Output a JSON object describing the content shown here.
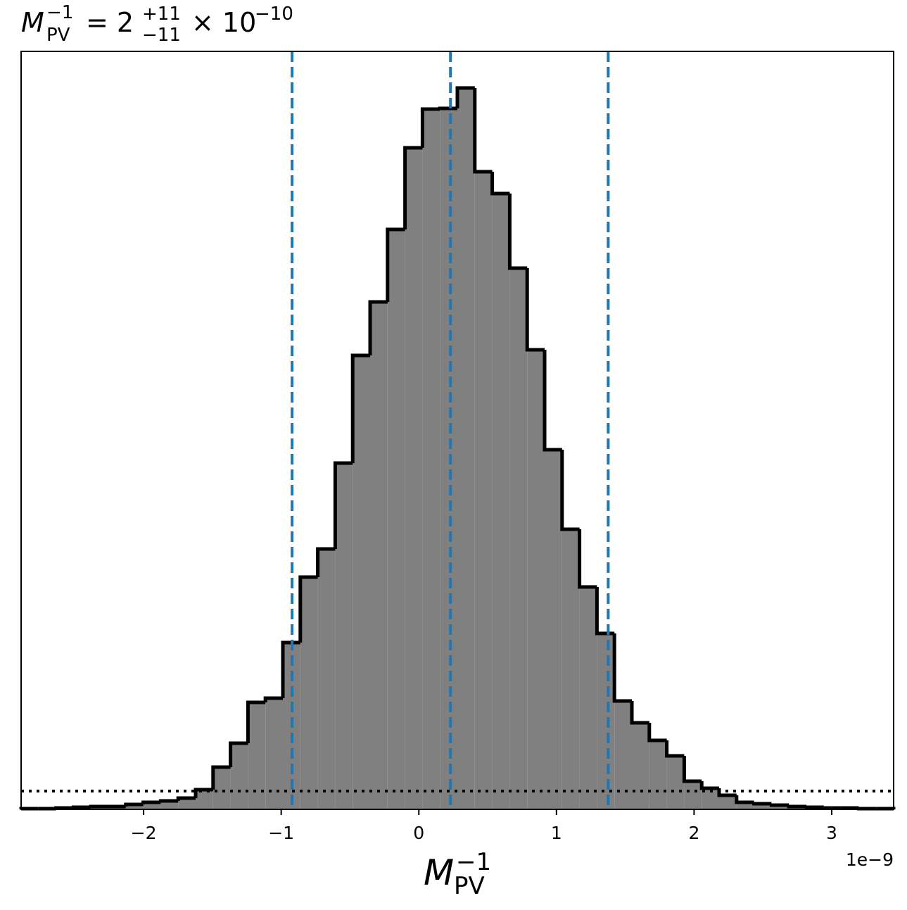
{
  "chart_data": {
    "type": "histogram",
    "title": {
      "symbol": "M",
      "symbol_sup": "−1",
      "symbol_sub": "PV",
      "equals": "= 2",
      "upper": "+11",
      "lower": "−11",
      "times": "× 10",
      "exponent": "−10"
    },
    "x_label": {
      "symbol": "M",
      "symbol_sup": "−1",
      "symbol_sub": "PV"
    },
    "x_offset_label": "1e−9",
    "bins": [
      -2.89,
      -2.7632,
      -2.6364,
      -2.5096,
      -2.3828,
      -2.256,
      -2.1292,
      -2.0024,
      -1.8756,
      -1.7488,
      -1.622,
      -1.4952,
      -1.3684,
      -1.2416,
      -1.1148,
      -0.988,
      -0.8612,
      -0.7344,
      -0.6076,
      -0.4808,
      -0.354,
      -0.2272,
      -0.1004,
      0.0264,
      0.1532,
      0.28,
      0.4068,
      0.5336,
      0.6604,
      0.7872,
      0.914,
      1.0408,
      1.1676,
      1.2944,
      1.4212,
      1.548,
      1.6748,
      1.8016,
      1.9284,
      2.0552,
      2.182,
      2.3088,
      2.4356,
      2.5624,
      2.6892,
      2.816,
      2.9428,
      3.0696,
      3.1964,
      3.3232,
      3.45
    ],
    "values": [
      1,
      1,
      2,
      3,
      4,
      4,
      7,
      10,
      12,
      16,
      28,
      60,
      94,
      152,
      158,
      237,
      330,
      370,
      492,
      645,
      721,
      824,
      940,
      995,
      996,
      1025,
      906,
      875,
      769,
      653,
      511,
      398,
      316,
      250,
      154,
      123,
      98,
      76,
      40,
      30,
      20,
      10,
      8,
      6,
      4,
      3,
      2,
      2,
      1,
      1
    ],
    "color": "#808080",
    "edge_color": "#000000",
    "quantile_lines": [
      -0.921,
      0.23,
      1.376
    ],
    "quantile_color": "#1f77b4",
    "reference_level": 26,
    "xlim": [
      -2.89,
      3.45
    ],
    "ylim": [
      0,
      1077
    ],
    "xticks": [
      {
        "value": -2,
        "label": "−2"
      },
      {
        "value": -1,
        "label": "−1"
      },
      0,
      1,
      2,
      3
    ]
  }
}
